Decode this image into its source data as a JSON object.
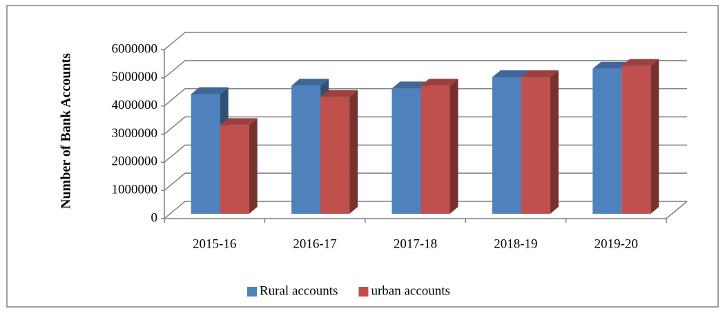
{
  "chart_data": {
    "type": "bar3d",
    "y_label": "Number of Bank Accounts",
    "categories": [
      "2015-16",
      "2016-17",
      "2017-18",
      "2018-19",
      "2019-20"
    ],
    "series": [
      {
        "name": "Rural accounts",
        "color": "#4f81bd",
        "values": [
          4250000,
          4550000,
          4450000,
          4850000,
          5150000
        ]
      },
      {
        "name": "urban accounts",
        "color": "#c0504d",
        "values": [
          3150000,
          4150000,
          4550000,
          4850000,
          5250000
        ]
      }
    ],
    "ylim": [
      0,
      6000000
    ],
    "yticks": [
      0,
      1000000,
      2000000,
      3000000,
      4000000,
      5000000,
      6000000
    ],
    "grid": true,
    "legend": "bottom"
  }
}
